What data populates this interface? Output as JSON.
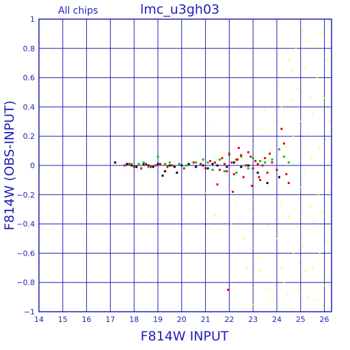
{
  "chart_data": {
    "type": "scatter",
    "title": "lmc_u3gh03",
    "subtitle": "All chips",
    "xlabel": "F814W INPUT",
    "ylabel": "F814W (OBS-INPUT)",
    "xlim": [
      14,
      26.3
    ],
    "ylim": [
      -1,
      1
    ],
    "xticks": [
      "14",
      "15",
      "16",
      "17",
      "18",
      "19",
      "20",
      "21",
      "22",
      "23",
      "24",
      "25",
      "26"
    ],
    "yticks": [
      "1",
      "0.8",
      "0.6",
      "0.4",
      "0.2",
      "0",
      "−0.2",
      "−0.4",
      "−0.6",
      "−0.8",
      "−1"
    ],
    "grid": true,
    "colors": {
      "frame": "#1f1fb4",
      "black": "#000000",
      "red": "#e00000",
      "green": "#00c000",
      "yellow": "#ffff00"
    },
    "series": [
      {
        "color": "black",
        "points": [
          [
            17.2,
            0.02
          ],
          [
            17.7,
            0.01
          ],
          [
            17.9,
            0.0
          ],
          [
            18.1,
            -0.01
          ],
          [
            18.4,
            0.01
          ],
          [
            18.6,
            0.0
          ],
          [
            18.8,
            -0.01
          ],
          [
            19.0,
            0.01
          ],
          [
            19.2,
            -0.07
          ],
          [
            19.3,
            -0.04
          ],
          [
            19.5,
            0.0
          ],
          [
            19.7,
            -0.01
          ],
          [
            19.8,
            -0.05
          ],
          [
            20.0,
            0.0
          ],
          [
            20.3,
            0.01
          ],
          [
            20.6,
            -0.01
          ],
          [
            20.9,
            0.0
          ],
          [
            21.1,
            -0.02
          ],
          [
            21.3,
            0.01
          ],
          [
            21.5,
            0.0
          ],
          [
            21.9,
            -0.01
          ],
          [
            22.2,
            0.02
          ],
          [
            22.5,
            -0.01
          ],
          [
            22.8,
            0.0
          ],
          [
            23.2,
            -0.05
          ],
          [
            23.6,
            -0.12
          ],
          [
            24.1,
            -0.08
          ]
        ]
      },
      {
        "color": "red",
        "points": [
          [
            17.6,
            0.0
          ],
          [
            17.8,
            0.01
          ],
          [
            18.0,
            -0.01
          ],
          [
            18.3,
            -0.02
          ],
          [
            18.5,
            0.01
          ],
          [
            18.7,
            -0.01
          ],
          [
            18.9,
            0.0
          ],
          [
            19.1,
            0.01
          ],
          [
            19.4,
            -0.01
          ],
          [
            19.6,
            0.0
          ],
          [
            20.1,
            -0.02
          ],
          [
            20.5,
            0.02
          ],
          [
            20.8,
            0.01
          ],
          [
            21.0,
            -0.02
          ],
          [
            21.2,
            0.03
          ],
          [
            21.4,
            0.02
          ],
          [
            21.6,
            -0.03
          ],
          [
            21.7,
            0.05
          ],
          [
            21.8,
            0.01
          ],
          [
            21.9,
            -0.04
          ],
          [
            22.0,
            0.08
          ],
          [
            22.1,
            0.02
          ],
          [
            22.2,
            -0.06
          ],
          [
            22.3,
            0.04
          ],
          [
            22.4,
            0.12
          ],
          [
            22.5,
            0.07
          ],
          [
            22.6,
            -0.08
          ],
          [
            22.7,
            0.0
          ],
          [
            22.8,
            0.09
          ],
          [
            22.9,
            0.06
          ],
          [
            23.0,
            -0.02
          ],
          [
            23.1,
            0.03
          ],
          [
            23.2,
            0.01
          ],
          [
            23.3,
            -0.1
          ],
          [
            23.4,
            0.0
          ],
          [
            23.5,
            0.05
          ],
          [
            23.6,
            -0.05
          ],
          [
            23.8,
            0.02
          ],
          [
            24.0,
            -0.03
          ],
          [
            24.2,
            0.25
          ],
          [
            24.3,
            0.15
          ],
          [
            24.5,
            -0.12
          ],
          [
            21.95,
            -0.85
          ],
          [
            22.15,
            -0.18
          ],
          [
            21.5,
            -0.13
          ],
          [
            22.95,
            -0.14
          ],
          [
            23.25,
            -0.08
          ],
          [
            24.4,
            -0.06
          ],
          [
            23.7,
            0.08
          ],
          [
            22.35,
            0.04
          ]
        ]
      },
      {
        "color": "green",
        "points": [
          [
            17.9,
            0.01
          ],
          [
            18.2,
            0.01
          ],
          [
            18.4,
            0.02
          ],
          [
            18.6,
            -0.01
          ],
          [
            19.0,
            0.06
          ],
          [
            19.3,
            0.01
          ],
          [
            19.5,
            0.02
          ],
          [
            19.9,
            0.01
          ],
          [
            20.2,
            0.0
          ],
          [
            20.6,
            0.02
          ],
          [
            20.9,
            0.04
          ],
          [
            21.1,
            0.02
          ],
          [
            21.3,
            -0.03
          ],
          [
            21.6,
            0.04
          ],
          [
            21.8,
            -0.04
          ],
          [
            22.0,
            0.07
          ],
          [
            22.3,
            -0.05
          ],
          [
            22.5,
            0.06
          ],
          [
            22.8,
            -0.02
          ],
          [
            23.0,
            0.05
          ],
          [
            23.3,
            0.03
          ],
          [
            23.5,
            0.02
          ],
          [
            23.8,
            0.04
          ],
          [
            24.1,
            0.11
          ],
          [
            24.3,
            0.06
          ],
          [
            24.5,
            0.02
          ]
        ]
      },
      {
        "color": "yellow",
        "points": [
          [
            21.1,
            0.27
          ],
          [
            21.2,
            -0.43
          ],
          [
            21.0,
            -0.19
          ],
          [
            21.4,
            -0.34
          ],
          [
            22.1,
            -0.4
          ],
          [
            22.3,
            -0.25
          ],
          [
            22.6,
            -0.5
          ],
          [
            22.9,
            -0.3
          ],
          [
            23.0,
            -0.95
          ],
          [
            23.2,
            -0.62
          ],
          [
            23.3,
            -0.72
          ],
          [
            23.5,
            0.38
          ],
          [
            23.6,
            -0.41
          ],
          [
            23.7,
            -0.85
          ],
          [
            23.8,
            -0.91
          ],
          [
            23.9,
            0.3
          ],
          [
            24.0,
            -0.5
          ],
          [
            24.1,
            0.55
          ],
          [
            24.2,
            0.4
          ],
          [
            24.2,
            -0.7
          ],
          [
            24.3,
            -0.8
          ],
          [
            24.4,
            0.12
          ],
          [
            24.5,
            0.72
          ],
          [
            24.5,
            -0.35
          ],
          [
            24.6,
            0.45
          ],
          [
            24.6,
            -0.98
          ],
          [
            24.7,
            0.2
          ],
          [
            24.7,
            -0.6
          ],
          [
            24.8,
            0.8
          ],
          [
            24.8,
            -0.3
          ],
          [
            24.9,
            0.52
          ],
          [
            24.9,
            -0.85
          ],
          [
            25.0,
            0.3
          ],
          [
            25.0,
            -0.15
          ],
          [
            25.1,
            0.92
          ],
          [
            25.1,
            -0.55
          ],
          [
            25.2,
            0.67
          ],
          [
            25.2,
            -0.72
          ],
          [
            25.3,
            0.22
          ],
          [
            25.3,
            -0.9
          ],
          [
            25.4,
            0.47
          ],
          [
            25.4,
            -0.28
          ],
          [
            25.5,
            0.35
          ],
          [
            25.5,
            -0.7
          ],
          [
            25.6,
            0.82
          ],
          [
            25.6,
            -0.45
          ],
          [
            25.7,
            0.6
          ],
          [
            25.7,
            -0.92
          ],
          [
            25.8,
            0.12
          ],
          [
            25.8,
            -0.6
          ],
          [
            25.9,
            0.9
          ],
          [
            25.9,
            -0.32
          ],
          [
            26.0,
            0.46
          ],
          [
            26.0,
            -0.82
          ],
          [
            26.1,
            0.72
          ],
          [
            26.1,
            -0.52
          ],
          [
            26.2,
            0.3
          ],
          [
            26.2,
            -0.18
          ],
          [
            25.15,
            -0.05
          ],
          [
            25.45,
            0.05
          ],
          [
            24.35,
            -0.15
          ],
          [
            24.85,
            -0.42
          ],
          [
            25.75,
            -0.2
          ],
          [
            26.05,
            0.18
          ],
          [
            24.15,
            -0.25
          ],
          [
            24.65,
            0.65
          ],
          [
            25.25,
            0.85
          ],
          [
            25.95,
            -0.96
          ],
          [
            24.45,
            -0.88
          ],
          [
            23.35,
            0.25
          ],
          [
            22.75,
            -0.7
          ],
          [
            25.05,
            0.5
          ],
          [
            24.95,
            -0.67
          ],
          [
            25.55,
            -0.38
          ]
        ]
      }
    ]
  }
}
